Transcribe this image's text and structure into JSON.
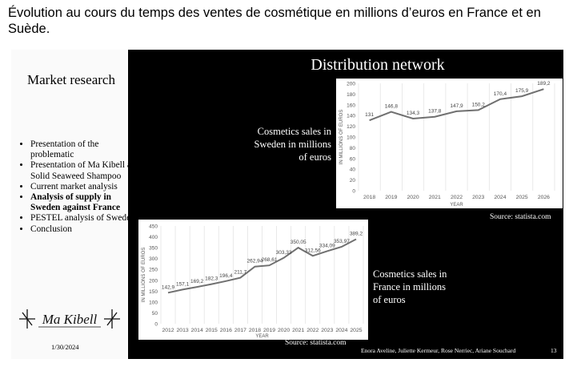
{
  "heading": "Évolution au cours du temps des ventes de cosmétique en millions d’euros en France et en Suède.",
  "sidebar": {
    "title": "Market research",
    "bullets": [
      "Presentation of the problematic",
      "Presentation of Ma Kibell and Solid Seaweed Shampoo",
      "Current market analysis",
      "Analysis of supply in Sweden against France",
      "PESTEL analysis of Sweden",
      "Conclusion"
    ],
    "active_bullet": 3,
    "logo_text": "Ma Kibell",
    "date": "1/30/2024"
  },
  "slide": {
    "title": "Distribution network",
    "sweden_caption": "Cosmetics sales in Sweden in millions of euros",
    "france_caption": "Cosmetics sales in France in millions of euros",
    "sweden_source": "Source: statista.com",
    "france_source": "Source: statista.com",
    "footer_authors": "Enora Aveline, Juliette Kermeur, Rose Nerriec, Ariane Souchard",
    "page_number": "13"
  },
  "chart_data": [
    {
      "type": "line",
      "xlabel": "YEAR",
      "ylabel": "IN MILLIONS OF EUROS",
      "ylim": [
        0,
        200
      ],
      "yticks": [
        0,
        20,
        40,
        60,
        80,
        100,
        120,
        140,
        160,
        180,
        200
      ],
      "categories": [
        "2018",
        "2019",
        "2020",
        "2021",
        "2022",
        "2023",
        "2024",
        "2025",
        "2026"
      ],
      "values": [
        131,
        146.8,
        134.3,
        137.8,
        147.9,
        150.2,
        170.4,
        175.9,
        189.2
      ],
      "labels": [
        "131",
        "146,8",
        "134,3",
        "137,8",
        "147,9",
        "150,2",
        "170,4",
        "175,9",
        "189,2"
      ],
      "grid": "vertical",
      "color": "#707070"
    },
    {
      "type": "line",
      "xlabel": "YEAR",
      "ylabel": "IN MILLIONS OF EUROS",
      "ylim": [
        0,
        450
      ],
      "yticks": [
        0,
        50,
        100,
        150,
        200,
        250,
        300,
        350,
        400,
        450
      ],
      "categories": [
        "2012",
        "2013",
        "2014",
        "2015",
        "2016",
        "2017",
        "2018",
        "2019",
        "2020",
        "2021",
        "2022",
        "2023",
        "2024",
        "2025"
      ],
      "values": [
        142.9,
        157.1,
        169.2,
        182.3,
        196.4,
        211.7,
        262.94,
        268.61,
        303.33,
        350.05,
        312.56,
        334.09,
        353.97,
        389.2
      ],
      "labels": [
        "142,9",
        "157,1",
        "169,2",
        "182,3",
        "196,4",
        "211,7",
        "262,94",
        "268,61",
        "303,33",
        "350,05",
        "312,56",
        "334,09",
        "353,97",
        "389,2"
      ],
      "grid": "vertical",
      "color": "#707070"
    }
  ]
}
